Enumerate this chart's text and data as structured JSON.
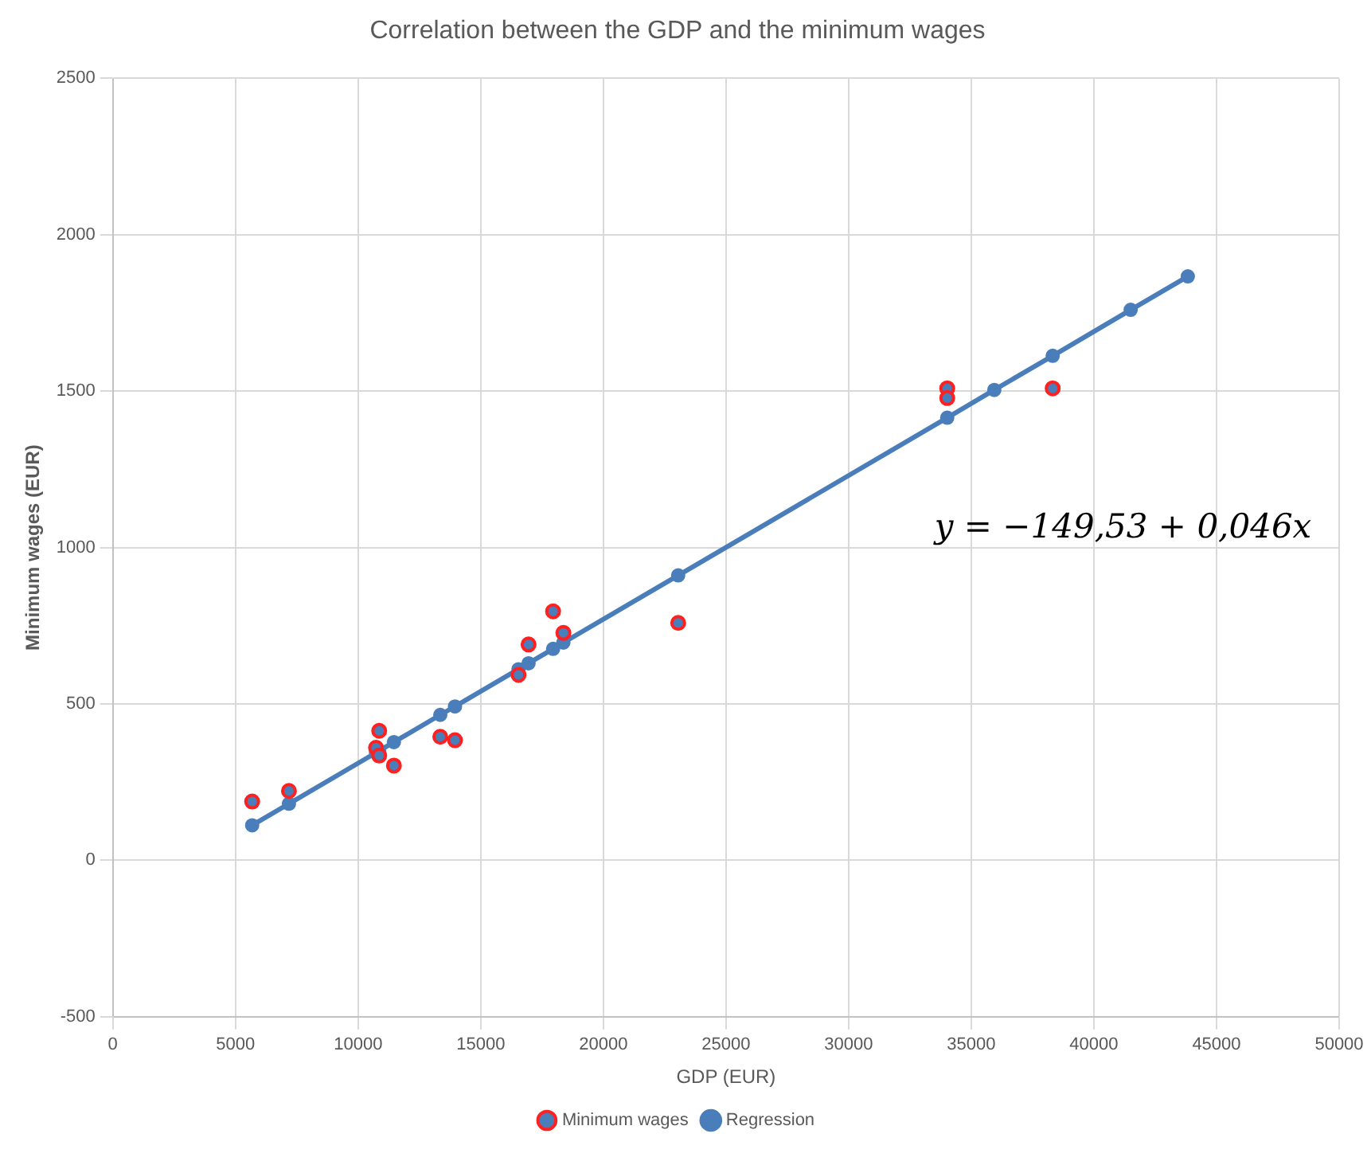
{
  "chart_data": {
    "type": "scatter",
    "title": "Correlation between the GDP and the minimum wages",
    "xlabel": "GDP (EUR)",
    "ylabel": "Minimum wages (EUR)",
    "xlim": [
      0,
      50000
    ],
    "xticks": [
      0,
      5000,
      10000,
      15000,
      20000,
      25000,
      30000,
      35000,
      40000,
      45000,
      50000
    ],
    "ylim": [
      -500,
      2500
    ],
    "yticks": [
      -500,
      0,
      500,
      1000,
      1500,
      2000,
      2500
    ],
    "grid": true,
    "legend": "bottom",
    "marker": "circle",
    "annotations": [
      "y = −149,53 + 0,046x"
    ],
    "series": [
      {
        "name": "Minimum wages",
        "type": "scatter",
        "color": "#ff2020",
        "x": [
          5680,
          7180,
          10860,
          10730,
          10860,
          11460,
          13350,
          13950,
          16540,
          16950,
          17950,
          18370,
          23050,
          34020,
          34020,
          38320
        ],
        "values": [
          188,
          222,
          414,
          360,
          335,
          303,
          395,
          384,
          593,
          690,
          796,
          727,
          759,
          1509,
          1478,
          1509
        ]
      },
      {
        "name": "Regression",
        "type": "line",
        "color": "#4a7ebb",
        "x": [
          5680,
          7180,
          10730,
          10860,
          11460,
          13350,
          13950,
          16540,
          16950,
          17950,
          18370,
          23050,
          34020,
          35940,
          38320,
          41500,
          43830
        ],
        "values": [
          112,
          181,
          344,
          350,
          378,
          465,
          492,
          611,
          630,
          676,
          696,
          911,
          1415,
          1504,
          1613,
          1760,
          1867
        ]
      }
    ]
  }
}
